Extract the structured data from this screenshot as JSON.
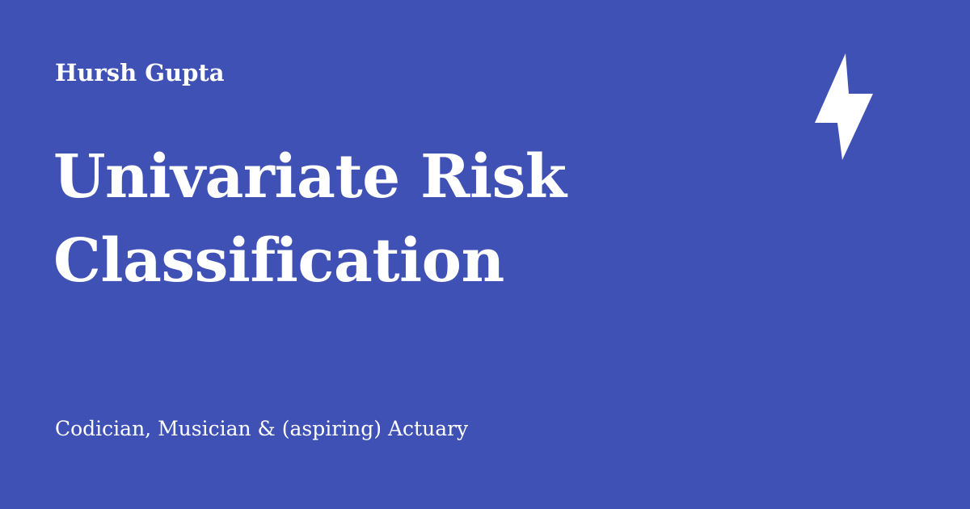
{
  "card": {
    "author": "Hursh Gupta",
    "title_lines": [
      "Univariate Risk",
      "Classification"
    ],
    "tagline": "Codician, Musician & (aspiring) Actuary",
    "logo_icon": "lightning-bolt-icon",
    "colors": {
      "background": "#4051b5",
      "text": "#ffffff"
    }
  }
}
